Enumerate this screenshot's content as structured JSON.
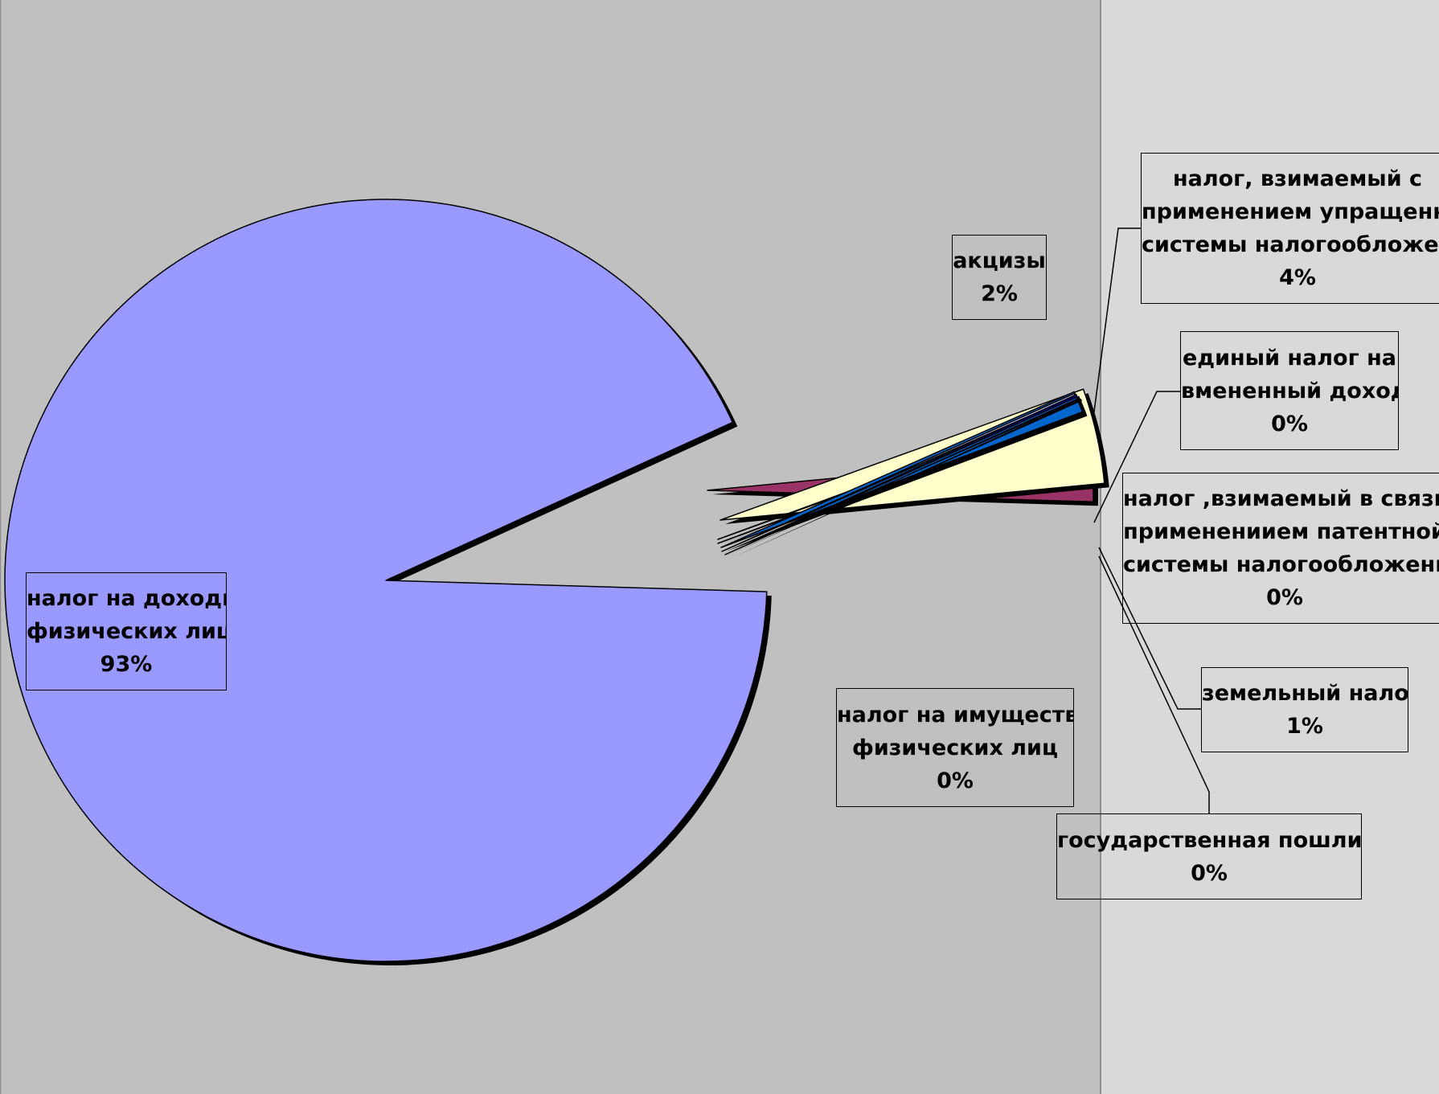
{
  "chart_data": {
    "type": "pie",
    "exploded": true,
    "legend": "none",
    "slices": [
      {
        "label": "налог на доходы физических лиц",
        "lines": [
          "налог на доходы",
          "физических лиц"
        ],
        "value": 93,
        "pct_label": "93%",
        "color": "#9999ff"
      },
      {
        "label": "акцизы",
        "lines": [
          "акцизы"
        ],
        "value": 2,
        "pct_label": "2%",
        "color": "#993366"
      },
      {
        "label": "налог, взимаемый с применением упращенной системы налогообложения",
        "lines": [
          "налог, взимаемый с",
          "применением упращенно",
          "системы налогообложени"
        ],
        "value": 4,
        "pct_label": "4%",
        "color": "#ffffcc"
      },
      {
        "label": "единый налог на вмененный доход",
        "lines": [
          "единый налог на",
          "вмененный доход"
        ],
        "value": 0.1,
        "pct_label": "0%",
        "color": "#ccffff"
      },
      {
        "label": "налог ,взимаемый в связи с применениием патентной системы налогообложения",
        "lines": [
          "налог ,взимаемый в связи с",
          "применениием патентной",
          "системы налогообложения"
        ],
        "value": 0.1,
        "pct_label": "0%",
        "color": "#ffcccc"
      },
      {
        "label": "земельный налог",
        "lines": [
          "земельный налог"
        ],
        "value": 0.9,
        "pct_label": "1%",
        "color": "#0066cc"
      },
      {
        "label": "налог на имущество физических лиц",
        "lines": [
          "налог на имущество",
          "физических лиц"
        ],
        "value": 0.1,
        "pct_label": "0%",
        "color": "#ccccff"
      },
      {
        "label": "государственная пошлина",
        "lines": [
          "государственная пошлина"
        ],
        "value": 0.1,
        "pct_label": "0%",
        "color": "#000080"
      }
    ]
  },
  "colors": {
    "plot_area": "#c0c0c0",
    "chart_area": "#d9d9d9",
    "outline": "#000000"
  }
}
